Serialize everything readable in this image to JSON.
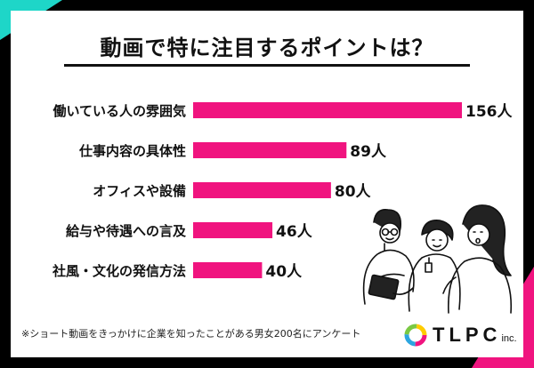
{
  "header": {
    "title": "動画で特に注目するポイントは？"
  },
  "chart_data": {
    "type": "bar",
    "orientation": "horizontal",
    "title": "動画で特に注目するポイントは？",
    "categories": [
      "働いている人の雰囲気",
      "仕事内容の具体性",
      "オフィスや設備",
      "給与や待遇への言及",
      "社風・文化の発信方法"
    ],
    "values": [
      156,
      89,
      80,
      46,
      40
    ],
    "value_labels": [
      "156人",
      "89人",
      "80人",
      "46人",
      "40人"
    ],
    "unit": "人",
    "xlim": [
      0,
      156
    ],
    "grid": false,
    "bar_color": "#f0147f"
  },
  "footnote": "※ショート動画をきっかけに企業を知ったことがある男女200名にアンケート",
  "logo": {
    "name": "TLPC",
    "suffix": "inc."
  },
  "colors": {
    "accent_pink": "#f0147f",
    "accent_teal": "#1ed6c8"
  }
}
